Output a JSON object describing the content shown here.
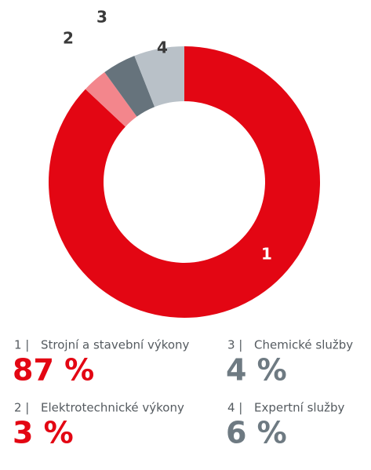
{
  "chart_data": {
    "type": "pie",
    "donut": true,
    "categories": [
      "Strojní a stavební výkony",
      "Elektrotechnické výkony",
      "Chemické služby",
      "Expertní služby"
    ],
    "segment_labels": [
      "1",
      "2",
      "3",
      "4"
    ],
    "legend_indices": [
      "1 |",
      "2 |",
      "3 |",
      "4 |"
    ],
    "values": [
      87,
      3,
      4,
      6
    ],
    "value_labels": [
      "87 %",
      "3 %",
      "4 %",
      "6 %"
    ],
    "colors": [
      "#e30613",
      "#f3868c",
      "#66737c",
      "#b9c1c8"
    ],
    "segment_label_colors": [
      "#ffffff",
      "#3a3a3a",
      "#3a3a3a",
      "#3a3a3a"
    ],
    "value_label_colors": [
      "#e30613",
      "#e30613",
      "#6e7a82",
      "#6e7a82"
    ]
  }
}
